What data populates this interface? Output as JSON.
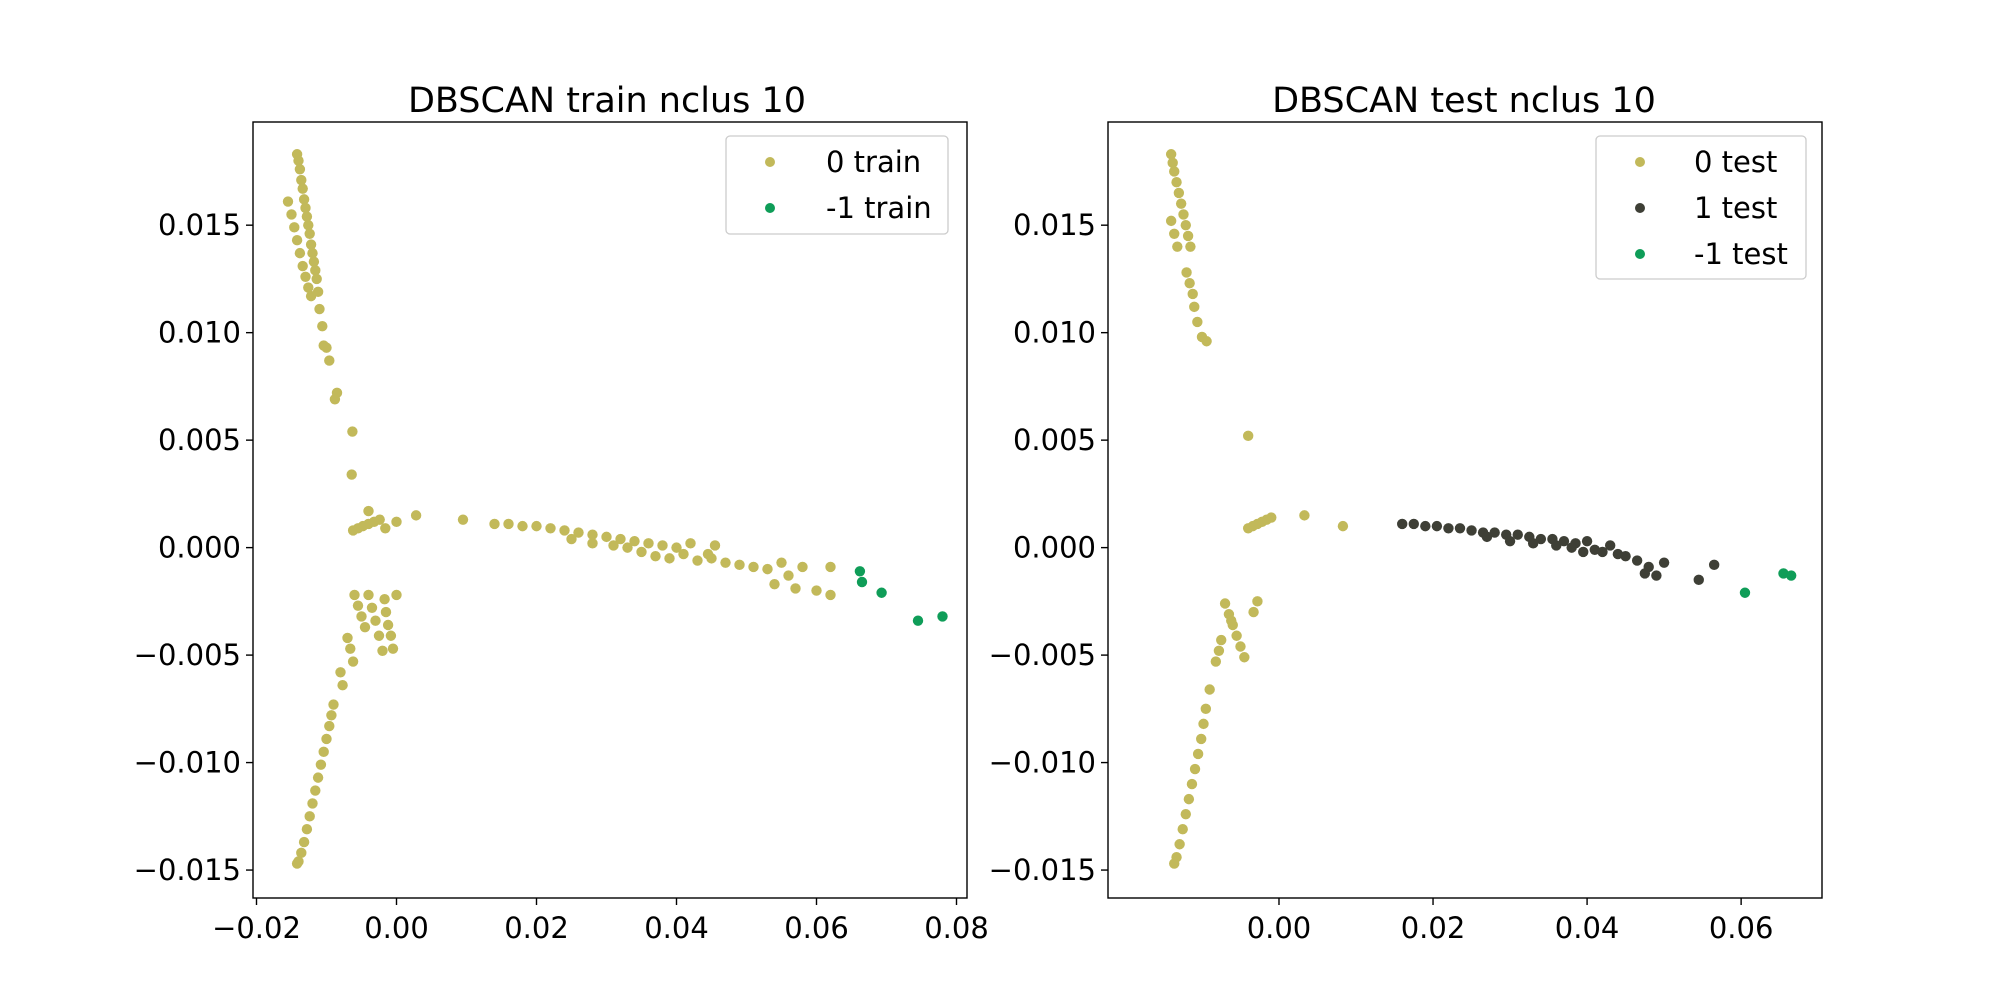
{
  "chart_data": [
    {
      "type": "scatter",
      "title": "DBSCAN train nclus 10",
      "xlabel": "",
      "ylabel": "",
      "xlim": [
        -0.0205,
        0.0815
      ],
      "ylim": [
        -0.0163,
        0.0198
      ],
      "xticks": [
        {
          "value": -0.02,
          "label": "−0.02"
        },
        {
          "value": 0.0,
          "label": "0.00"
        },
        {
          "value": 0.02,
          "label": "0.02"
        },
        {
          "value": 0.04,
          "label": "0.04"
        },
        {
          "value": 0.06,
          "label": "0.06"
        },
        {
          "value": 0.08,
          "label": "0.08"
        }
      ],
      "yticks": [
        {
          "value": -0.015,
          "label": "−0.015"
        },
        {
          "value": -0.01,
          "label": "−0.010"
        },
        {
          "value": -0.005,
          "label": "−0.005"
        },
        {
          "value": 0.0,
          "label": "0.000"
        },
        {
          "value": 0.005,
          "label": "0.005"
        },
        {
          "value": 0.01,
          "label": "0.010"
        },
        {
          "value": 0.015,
          "label": "0.015"
        }
      ],
      "legend_position": "upper right",
      "grid": false,
      "series": [
        {
          "name": "0 train",
          "color": "#c2b95a",
          "points": [
            [
              -0.0142,
              0.0183
            ],
            [
              -0.014,
              0.018
            ],
            [
              -0.0138,
              0.0176
            ],
            [
              -0.0136,
              0.0171
            ],
            [
              -0.0134,
              0.0167
            ],
            [
              -0.0132,
              0.0162
            ],
            [
              -0.013,
              0.0158
            ],
            [
              -0.0128,
              0.0154
            ],
            [
              -0.0126,
              0.015
            ],
            [
              -0.0124,
              0.0146
            ],
            [
              -0.0122,
              0.0141
            ],
            [
              -0.012,
              0.0137
            ],
            [
              -0.0118,
              0.0133
            ],
            [
              -0.0116,
              0.0129
            ],
            [
              -0.0114,
              0.0125
            ],
            [
              -0.0155,
              0.0161
            ],
            [
              -0.015,
              0.0155
            ],
            [
              -0.0146,
              0.0149
            ],
            [
              -0.0142,
              0.0143
            ],
            [
              -0.0138,
              0.0137
            ],
            [
              -0.0134,
              0.0131
            ],
            [
              -0.013,
              0.0126
            ],
            [
              -0.0126,
              0.0121
            ],
            [
              -0.0122,
              0.0117
            ],
            [
              -0.0112,
              0.0119
            ],
            [
              -0.011,
              0.0111
            ],
            [
              -0.0106,
              0.0103
            ],
            [
              -0.0104,
              0.0094
            ],
            [
              -0.01,
              0.0093
            ],
            [
              -0.0096,
              0.0087
            ],
            [
              -0.0088,
              0.0069
            ],
            [
              -0.0085,
              0.0072
            ],
            [
              -0.0063,
              0.0054
            ],
            [
              -0.0064,
              0.0034
            ],
            [
              -0.0062,
              0.0008
            ],
            [
              -0.0055,
              0.0009
            ],
            [
              -0.0048,
              0.001
            ],
            [
              -0.004,
              0.0011
            ],
            [
              -0.0032,
              0.0012
            ],
            [
              -0.0024,
              0.0013
            ],
            [
              -0.0016,
              0.0009
            ],
            [
              -0.004,
              0.0017
            ],
            [
              0.0,
              0.0012
            ],
            [
              0.0028,
              0.0015
            ],
            [
              -0.006,
              -0.0022
            ],
            [
              -0.0055,
              -0.0027
            ],
            [
              -0.005,
              -0.0032
            ],
            [
              -0.0045,
              -0.0037
            ],
            [
              -0.004,
              -0.0022
            ],
            [
              -0.0035,
              -0.0028
            ],
            [
              -0.003,
              -0.0034
            ],
            [
              -0.0025,
              -0.0041
            ],
            [
              -0.002,
              -0.0048
            ],
            [
              -0.0017,
              -0.0024
            ],
            [
              -0.0015,
              -0.003
            ],
            [
              -0.0012,
              -0.0036
            ],
            [
              -0.0008,
              -0.0041
            ],
            [
              -0.0005,
              -0.0047
            ],
            [
              0.0,
              -0.0022
            ],
            [
              -0.007,
              -0.0042
            ],
            [
              -0.0066,
              -0.0047
            ],
            [
              -0.0062,
              -0.0053
            ],
            [
              -0.008,
              -0.0058
            ],
            [
              -0.0077,
              -0.0064
            ],
            [
              -0.009,
              -0.0073
            ],
            [
              -0.0093,
              -0.0078
            ],
            [
              -0.0096,
              -0.0083
            ],
            [
              -0.01,
              -0.0089
            ],
            [
              -0.0104,
              -0.0095
            ],
            [
              -0.0108,
              -0.0101
            ],
            [
              -0.0112,
              -0.0107
            ],
            [
              -0.0116,
              -0.0113
            ],
            [
              -0.012,
              -0.0119
            ],
            [
              -0.0124,
              -0.0125
            ],
            [
              -0.0128,
              -0.0131
            ],
            [
              -0.0132,
              -0.0137
            ],
            [
              -0.0136,
              -0.0142
            ],
            [
              -0.014,
              -0.0146
            ],
            [
              -0.0142,
              -0.0147
            ],
            [
              0.0095,
              0.0013
            ],
            [
              0.014,
              0.0011
            ],
            [
              0.016,
              0.0011
            ],
            [
              0.018,
              0.001
            ],
            [
              0.02,
              0.001
            ],
            [
              0.022,
              0.0009
            ],
            [
              0.024,
              0.0008
            ],
            [
              0.026,
              0.0007
            ],
            [
              0.028,
              0.0006
            ],
            [
              0.03,
              0.0005
            ],
            [
              0.032,
              0.0004
            ],
            [
              0.034,
              0.0003
            ],
            [
              0.036,
              0.0002
            ],
            [
              0.038,
              0.0001
            ],
            [
              0.04,
              0.0
            ],
            [
              0.025,
              0.0004
            ],
            [
              0.028,
              0.0002
            ],
            [
              0.031,
              0.0001
            ],
            [
              0.033,
              0.0
            ],
            [
              0.035,
              -0.0002
            ],
            [
              0.037,
              -0.0004
            ],
            [
              0.039,
              -0.0005
            ],
            [
              0.041,
              -0.0003
            ],
            [
              0.043,
              -0.0006
            ],
            [
              0.045,
              -0.0005
            ],
            [
              0.047,
              -0.0007
            ],
            [
              0.049,
              -0.0008
            ],
            [
              0.051,
              -0.0009
            ],
            [
              0.055,
              -0.0007
            ],
            [
              0.058,
              -0.0009
            ],
            [
              0.062,
              -0.0009
            ],
            [
              0.056,
              -0.0013
            ],
            [
              0.054,
              -0.0017
            ],
            [
              0.057,
              -0.0019
            ],
            [
              0.06,
              -0.002
            ],
            [
              0.062,
              -0.0022
            ],
            [
              0.053,
              -0.001
            ],
            [
              0.0445,
              -0.0003
            ],
            [
              0.042,
              0.0002
            ],
            [
              0.0455,
              0.0001
            ]
          ]
        },
        {
          "name": "-1 train",
          "color": "#0f9d58",
          "points": [
            [
              0.0662,
              -0.0011
            ],
            [
              0.0665,
              -0.0016
            ],
            [
              0.0693,
              -0.0021
            ],
            [
              0.0745,
              -0.0034
            ],
            [
              0.078,
              -0.0032
            ]
          ]
        }
      ]
    },
    {
      "type": "scatter",
      "title": "DBSCAN test nclus 10",
      "xlabel": "",
      "ylabel": "",
      "xlim": [
        -0.0222,
        0.0705
      ],
      "ylim": [
        -0.0163,
        0.0198
      ],
      "xticks": [
        {
          "value": 0.0,
          "label": "0.00"
        },
        {
          "value": 0.02,
          "label": "0.02"
        },
        {
          "value": 0.04,
          "label": "0.04"
        },
        {
          "value": 0.06,
          "label": "0.06"
        }
      ],
      "yticks": [
        {
          "value": -0.015,
          "label": "−0.015"
        },
        {
          "value": -0.01,
          "label": "−0.010"
        },
        {
          "value": -0.005,
          "label": "−0.005"
        },
        {
          "value": 0.0,
          "label": "0.000"
        },
        {
          "value": 0.005,
          "label": "0.005"
        },
        {
          "value": 0.01,
          "label": "0.010"
        },
        {
          "value": 0.015,
          "label": "0.015"
        }
      ],
      "legend_position": "upper right",
      "grid": false,
      "series": [
        {
          "name": "0 test",
          "color": "#c2b95a",
          "points": [
            [
              -0.014,
              0.0183
            ],
            [
              -0.0138,
              0.0179
            ],
            [
              -0.0136,
              0.0175
            ],
            [
              -0.0133,
              0.017
            ],
            [
              -0.013,
              0.0165
            ],
            [
              -0.0127,
              0.016
            ],
            [
              -0.0124,
              0.0155
            ],
            [
              -0.0121,
              0.015
            ],
            [
              -0.0118,
              0.0145
            ],
            [
              -0.0115,
              0.014
            ],
            [
              -0.014,
              0.0152
            ],
            [
              -0.0136,
              0.0146
            ],
            [
              -0.0132,
              0.014
            ],
            [
              -0.012,
              0.0128
            ],
            [
              -0.0116,
              0.0123
            ],
            [
              -0.0112,
              0.0118
            ],
            [
              -0.011,
              0.0112
            ],
            [
              -0.0106,
              0.0105
            ],
            [
              -0.01,
              0.0098
            ],
            [
              -0.0094,
              0.0096
            ],
            [
              -0.004,
              0.0052
            ],
            [
              -0.004,
              0.0009
            ],
            [
              -0.0034,
              0.001
            ],
            [
              -0.0028,
              0.0011
            ],
            [
              -0.0022,
              0.0012
            ],
            [
              -0.0016,
              0.0013
            ],
            [
              -0.001,
              0.0014
            ],
            [
              0.0033,
              0.0015
            ],
            [
              0.0083,
              0.001
            ],
            [
              -0.007,
              -0.0026
            ],
            [
              -0.0065,
              -0.0031
            ],
            [
              -0.006,
              -0.0036
            ],
            [
              -0.0055,
              -0.0041
            ],
            [
              -0.005,
              -0.0046
            ],
            [
              -0.0045,
              -0.0051
            ],
            [
              -0.0075,
              -0.0043
            ],
            [
              -0.0078,
              -0.0048
            ],
            [
              -0.0082,
              -0.0053
            ],
            [
              -0.009,
              -0.0066
            ],
            [
              -0.0095,
              -0.0075
            ],
            [
              -0.0098,
              -0.0082
            ],
            [
              -0.0101,
              -0.0089
            ],
            [
              -0.0105,
              -0.0096
            ],
            [
              -0.0109,
              -0.0103
            ],
            [
              -0.0113,
              -0.011
            ],
            [
              -0.0117,
              -0.0117
            ],
            [
              -0.0121,
              -0.0124
            ],
            [
              -0.0125,
              -0.0131
            ],
            [
              -0.0129,
              -0.0138
            ],
            [
              -0.0133,
              -0.0144
            ],
            [
              -0.0136,
              -0.0147
            ],
            [
              -0.0028,
              -0.0025
            ],
            [
              -0.0033,
              -0.003
            ],
            [
              -0.0062,
              -0.0034
            ]
          ]
        },
        {
          "name": "1 test",
          "color": "#3e3f36",
          "points": [
            [
              0.016,
              0.0011
            ],
            [
              0.0175,
              0.0011
            ],
            [
              0.019,
              0.001
            ],
            [
              0.0205,
              0.001
            ],
            [
              0.022,
              0.0009
            ],
            [
              0.0235,
              0.0009
            ],
            [
              0.025,
              0.0008
            ],
            [
              0.0265,
              0.0007
            ],
            [
              0.028,
              0.0007
            ],
            [
              0.0295,
              0.0006
            ],
            [
              0.031,
              0.0006
            ],
            [
              0.0325,
              0.0005
            ],
            [
              0.034,
              0.0004
            ],
            [
              0.0355,
              0.0004
            ],
            [
              0.037,
              0.0003
            ],
            [
              0.0385,
              0.0002
            ],
            [
              0.04,
              0.0003
            ],
            [
              0.027,
              0.0005
            ],
            [
              0.03,
              0.0003
            ],
            [
              0.033,
              0.0002
            ],
            [
              0.036,
              0.0001
            ],
            [
              0.038,
              0.0
            ],
            [
              0.0395,
              -0.0002
            ],
            [
              0.041,
              -0.0001
            ],
            [
              0.043,
              0.0001
            ],
            [
              0.045,
              -0.0004
            ],
            [
              0.0465,
              -0.0006
            ],
            [
              0.048,
              -0.0009
            ],
            [
              0.0475,
              -0.0012
            ],
            [
              0.05,
              -0.0007
            ],
            [
              0.049,
              -0.0013
            ],
            [
              0.0545,
              -0.0015
            ],
            [
              0.0565,
              -0.0008
            ],
            [
              0.044,
              -0.0003
            ],
            [
              0.042,
              -0.0002
            ]
          ]
        },
        {
          "name": "-1 test",
          "color": "#0f9d58",
          "points": [
            [
              0.0605,
              -0.0021
            ],
            [
              0.0655,
              -0.0012
            ],
            [
              0.0665,
              -0.0013
            ]
          ]
        }
      ]
    }
  ]
}
